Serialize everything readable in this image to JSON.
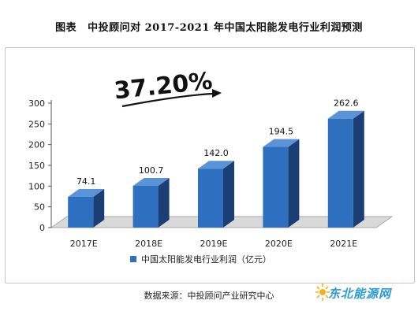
{
  "title": {
    "prefix": "图表",
    "text": "中投顾问对 2017-2021 年中国太阳能发电行业利润预测"
  },
  "growth_label": "37.20%",
  "source": "数据来源：中投顾问产业研究中心",
  "watermark": {
    "text": "东北能源网"
  },
  "colors": {
    "bar_front": "#2f6fbf",
    "bar_side": "#1b3f75",
    "bar_top": "#5b93d8",
    "floor": "#d9d9d9",
    "arrow": "#111111"
  },
  "chart_data": {
    "type": "bar",
    "title": "",
    "xlabel": "",
    "ylabel": "",
    "categories": [
      "2017E",
      "2018E",
      "2019E",
      "2020E",
      "2021E"
    ],
    "series": [
      {
        "name": "中国太阳能发电行业利润（亿元）",
        "values": [
          74.1,
          100.7,
          142.0,
          194.5,
          262.6
        ]
      }
    ],
    "value_labels": [
      "74.1",
      "100.7",
      "142.0",
      "194.5",
      "262.6"
    ],
    "ylim": [
      0,
      300
    ],
    "yticks": [
      0,
      50,
      100,
      150,
      200,
      250,
      300
    ],
    "grid": false,
    "legend_position": "bottom"
  }
}
